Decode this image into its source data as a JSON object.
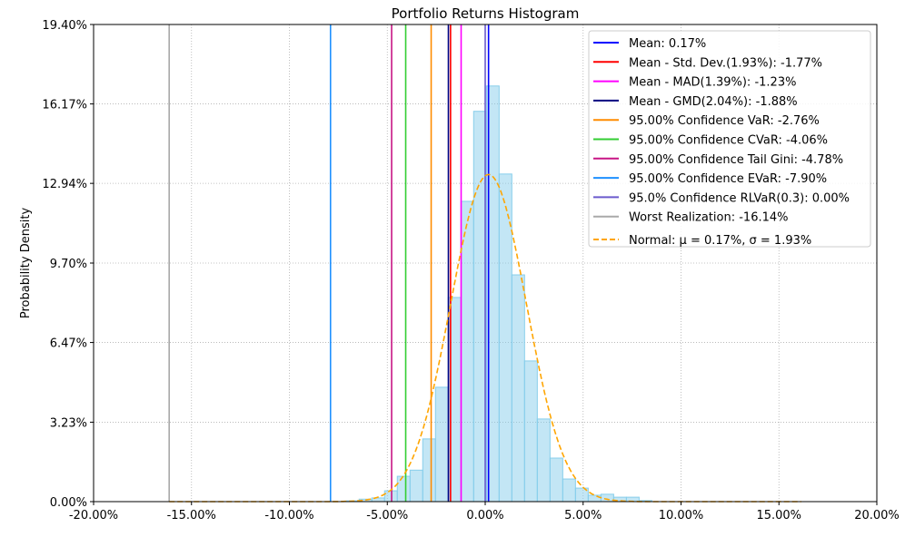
{
  "chart_data": {
    "type": "bar",
    "title": "Portfolio Returns Histogram",
    "xlabel": "",
    "ylabel": "Probability Density",
    "xlim": [
      -20,
      20
    ],
    "ylim": [
      0,
      19.4
    ],
    "grid": true,
    "legend_position": "top-right",
    "x_ticks": [
      "-20.00%",
      "-15.00%",
      "-10.00%",
      "-5.00%",
      "0.00%",
      "5.00%",
      "10.00%",
      "15.00%",
      "20.00%"
    ],
    "x_tick_values": [
      -20,
      -15,
      -10,
      -5,
      0,
      5,
      10,
      15,
      20
    ],
    "y_ticks": [
      "0.00%",
      "3.23%",
      "6.47%",
      "9.70%",
      "12.94%",
      "16.17%",
      "19.40%"
    ],
    "y_tick_values": [
      0,
      3.23,
      6.47,
      9.7,
      12.94,
      16.17,
      19.4
    ],
    "histogram": {
      "bin_width": 0.65,
      "bin_starts": [
        -7.09,
        -6.44,
        -5.79,
        -5.14,
        -4.49,
        -3.84,
        -3.19,
        -2.54,
        -1.89,
        -1.24,
        -0.59,
        0.06,
        0.71,
        1.36,
        2.01,
        2.66,
        3.31,
        3.96,
        4.61,
        5.26,
        5.91,
        6.56,
        7.21,
        7.86
      ],
      "values": [
        0.03,
        0.1,
        0.15,
        0.44,
        1.03,
        1.28,
        2.55,
        4.65,
        8.3,
        12.21,
        15.87,
        16.9,
        13.32,
        9.22,
        5.72,
        3.36,
        1.77,
        0.92,
        0.55,
        0.26,
        0.3,
        0.18,
        0.18,
        0.04
      ],
      "color": "#87CEEB"
    },
    "lines": [
      {
        "label": "Mean: 0.17%",
        "x": 0.17,
        "color": "#0000FF"
      },
      {
        "label": "Mean - Std. Dev.(1.93%): -1.77%",
        "x": -1.77,
        "color": "#FF0000"
      },
      {
        "label": "Mean - MAD(1.39%): -1.23%",
        "x": -1.23,
        "color": "#FF00FF"
      },
      {
        "label": "Mean - GMD(2.04%): -1.88%",
        "x": -1.88,
        "color": "#000080"
      },
      {
        "label": "95.00% Confidence VaR: -2.76%",
        "x": -2.76,
        "color": "#FF8C00"
      },
      {
        "label": "95.00% Confidence CVaR: -4.06%",
        "x": -4.06,
        "color": "#32CD32"
      },
      {
        "label": "95.00% Confidence Tail Gini: -4.78%",
        "x": -4.78,
        "color": "#C71585"
      },
      {
        "label": "95.00% Confidence EVaR: -7.90%",
        "x": -7.9,
        "color": "#1E90FF"
      },
      {
        "label": "95.0% Confidence RLVaR(0.3): 0.00%",
        "x": 0.0,
        "color": "#6A5ACD"
      },
      {
        "label": "Worst Realization: -16.14%",
        "x": -16.14,
        "color": "#A9A9A9"
      }
    ],
    "normal": {
      "label": "Normal: μ = 0.17%, σ = 1.93%",
      "mu": 0.17,
      "sigma": 1.93,
      "peak": 13.3,
      "range": [
        -16.14,
        16.14
      ],
      "color": "#FFA500"
    }
  }
}
